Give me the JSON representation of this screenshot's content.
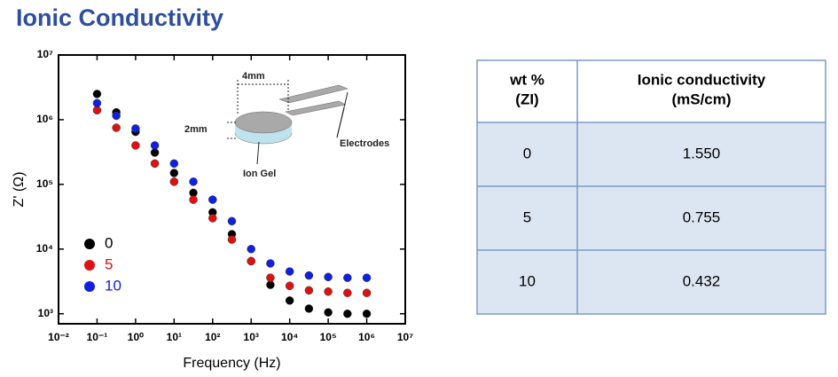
{
  "title": "Ionic Conductivity",
  "chart_data": {
    "type": "scatter",
    "xlabel": "Frequency (Hz)",
    "ylabel": "Z' (Ω)",
    "xscale": "log",
    "yscale": "log",
    "xlim": [
      0.01,
      10000000
    ],
    "ylim": [
      700,
      10000000
    ],
    "xticks": [
      {
        "value": 0.01,
        "label": "10⁻²"
      },
      {
        "value": 0.1,
        "label": "10⁻¹"
      },
      {
        "value": 1,
        "label": "10⁰"
      },
      {
        "value": 10,
        "label": "10¹"
      },
      {
        "value": 100,
        "label": "10²"
      },
      {
        "value": 1000,
        "label": "10³"
      },
      {
        "value": 10000,
        "label": "10⁴"
      },
      {
        "value": 100000,
        "label": "10⁵"
      },
      {
        "value": 1000000,
        "label": "10⁶"
      },
      {
        "value": 10000000,
        "label": "10⁷"
      }
    ],
    "yticks": [
      {
        "value": 1000,
        "label": "10³"
      },
      {
        "value": 10000,
        "label": "10⁴"
      },
      {
        "value": 100000,
        "label": "10⁵"
      },
      {
        "value": 1000000,
        "label": "10⁶"
      },
      {
        "value": 10000000,
        "label": "10⁷"
      }
    ],
    "legend": "lower left",
    "x": [
      0.1,
      0.316,
      1,
      3.16,
      10,
      31.6,
      100,
      316,
      1000,
      3160,
      10000,
      31600,
      100000,
      316000,
      1000000
    ],
    "series": [
      {
        "name": "0",
        "color": "#000000",
        "values": [
          2500000,
          1300000,
          650000,
          310000,
          150000,
          74000,
          37000,
          17000,
          6500,
          2800,
          1600,
          1200,
          1050,
          1000,
          1000
        ]
      },
      {
        "name": "5",
        "color": "#e01010",
        "values": [
          1400000,
          750000,
          400000,
          210000,
          110000,
          58000,
          30000,
          14000,
          6500,
          3600,
          2700,
          2300,
          2200,
          2100,
          2100
        ]
      },
      {
        "name": "10",
        "color": "#1020e0",
        "values": [
          1800000,
          1150000,
          730000,
          400000,
          210000,
          110000,
          58000,
          27000,
          10000,
          6000,
          4500,
          3900,
          3700,
          3600,
          3600
        ]
      }
    ]
  },
  "inset": {
    "width_label": "4mm",
    "height_label": "2mm",
    "electrodes_label": "Electrodes",
    "gel_label": "Ion Gel"
  },
  "table": {
    "headers": [
      [
        "wt %",
        "(ZI)"
      ],
      [
        "Ionic conductivity",
        "(mS/cm)"
      ]
    ],
    "rows": [
      [
        "0",
        "1.550"
      ],
      [
        "5",
        "0.755"
      ],
      [
        "10",
        "0.432"
      ]
    ]
  }
}
